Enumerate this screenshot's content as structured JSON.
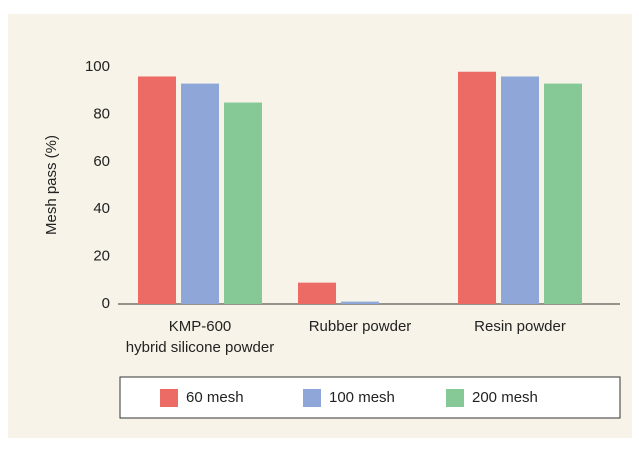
{
  "chart_data": {
    "type": "bar",
    "ylabel": "Mesh pass (%)",
    "categories": [
      "KMP-600\nhybrid silicone powder",
      "Rubber powder",
      "Resin powder"
    ],
    "series": [
      {
        "name": "60 mesh",
        "color": "#ec6b64",
        "values": [
          96,
          9,
          98
        ]
      },
      {
        "name": "100 mesh",
        "color": "#8ea7d8",
        "values": [
          93,
          1,
          96
        ]
      },
      {
        "name": "200 mesh",
        "color": "#86c996",
        "values": [
          85,
          0,
          93
        ]
      }
    ],
    "ylim": [
      0,
      100
    ],
    "yticks": [
      0,
      20,
      40,
      60,
      80,
      100
    ],
    "grid": false,
    "legend": "bottom"
  }
}
